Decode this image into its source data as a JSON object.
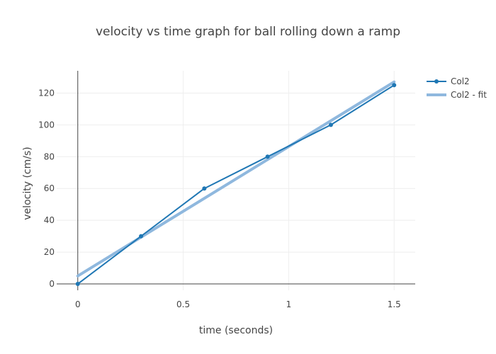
{
  "chart_data": {
    "type": "line",
    "title": "velocity vs time graph for ball rolling down a ramp",
    "xlabel": "time (seconds)",
    "ylabel": "velocity (cm/s)",
    "xlim": [
      -0.1,
      1.6
    ],
    "ylim": [
      -4,
      134
    ],
    "xticks": [
      0,
      0.5,
      1,
      1.5
    ],
    "xtick_labels": [
      "0",
      "0.5",
      "1",
      "1.5"
    ],
    "yticks": [
      0,
      20,
      40,
      60,
      80,
      100,
      120
    ],
    "ytick_labels": [
      "0",
      "20",
      "40",
      "60",
      "80",
      "100",
      "120"
    ],
    "grid": true,
    "legend_position": "top-right",
    "series": [
      {
        "name": "Col2",
        "style": "lines+markers",
        "color": "#1f77b4",
        "x": [
          0,
          0.3,
          0.6,
          0.9,
          1.2,
          1.5
        ],
        "y": [
          0,
          30,
          60,
          80,
          100,
          125
        ]
      },
      {
        "name": "Col2 - fit",
        "style": "line",
        "color": "#8fb8de",
        "x": [
          0,
          1.5
        ],
        "y": [
          5,
          127
        ]
      }
    ]
  }
}
